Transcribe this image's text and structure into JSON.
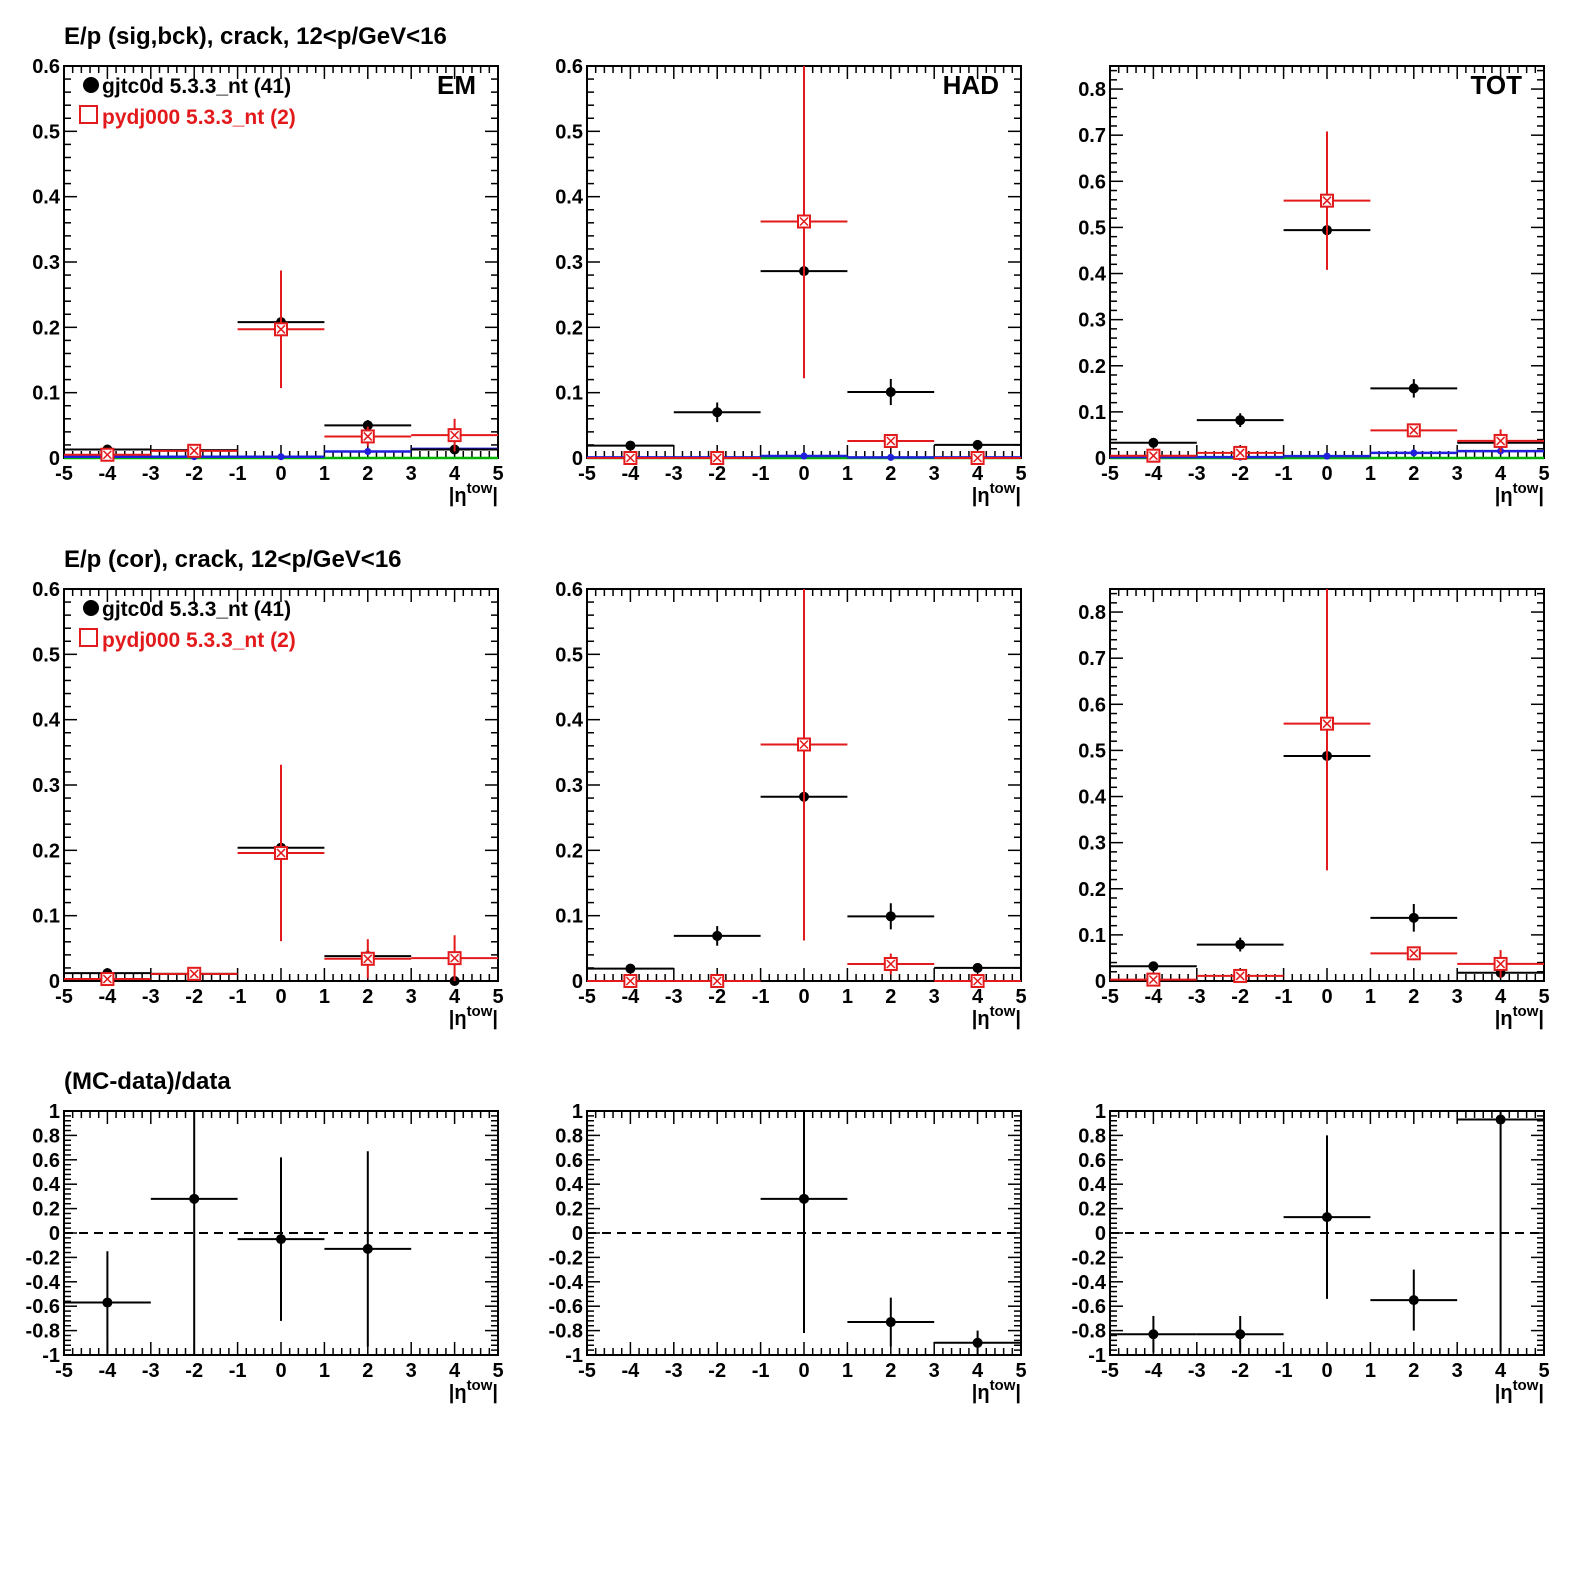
{
  "colors": {
    "data": "#000000",
    "mc": "#e31a1c",
    "blue": "#1f1fdc",
    "green": "#00b400"
  },
  "legend": {
    "data": "gjtc0d 5.3.3_nt (41)",
    "mc": "pydj000 5.3.3_nt (2)"
  },
  "chart_data": [
    {
      "type": "scatter",
      "row_title": "E/p (sig,bck), crack, 12<p/GeV<16",
      "corner_label": "EM",
      "xlabel": "|η^tow|",
      "xlim": [
        -5,
        5
      ],
      "ylim": [
        0,
        0.6
      ],
      "yticks": [
        0,
        0.1,
        0.2,
        0.3,
        0.4,
        0.5,
        0.6
      ],
      "yticklabels": [
        "0",
        "0.1",
        "0.2",
        "0.3",
        "0.4",
        "0.5",
        "0.6"
      ],
      "xticks": [
        -5,
        -4,
        -3,
        -2,
        -1,
        0,
        1,
        2,
        3,
        4,
        5
      ],
      "xticklabels": [
        "-5",
        "-4",
        "-3",
        "-2",
        "-1",
        "0",
        "1",
        "2",
        "3",
        "4",
        "5"
      ],
      "has_legend": true,
      "series": [
        {
          "name": "gjtc0d 5.3.3_nt (41)",
          "style": "data",
          "x": [
            -4,
            -2,
            0,
            2,
            4
          ],
          "xerr": 1,
          "y": [
            0.013,
            0.012,
            0.208,
            0.05,
            0.013
          ],
          "yerr": [
            0.003,
            0.005,
            0.01,
            0.008,
            0.003
          ]
        },
        {
          "name": "pydj000 5.3.3_nt (2)",
          "style": "mc",
          "x": [
            -4,
            -2,
            0,
            2,
            4
          ],
          "xerr": 1,
          "y": [
            0.005,
            0.011,
            0.197,
            0.033,
            0.035
          ],
          "yerr": [
            0.004,
            0.006,
            0.09,
            0.015,
            0.025
          ]
        },
        {
          "style": "blue",
          "x": [
            -4,
            -2,
            0,
            2,
            4
          ],
          "xerr": 1,
          "y": [
            0.002,
            0.002,
            0.002,
            0.01,
            0.014
          ],
          "yerr": [
            0,
            0,
            0,
            0,
            0
          ]
        },
        {
          "style": "green",
          "x": [
            -4,
            -2,
            0,
            2,
            4
          ],
          "xerr": 1,
          "y": [
            0,
            0,
            0,
            0,
            0
          ],
          "yerr": [
            0,
            0,
            0,
            0,
            0
          ]
        }
      ]
    },
    {
      "type": "scatter",
      "corner_label": "HAD",
      "xlabel": "|η^tow|",
      "xlim": [
        -5,
        5
      ],
      "ylim": [
        0,
        0.6
      ],
      "yticks": [
        0,
        0.1,
        0.2,
        0.3,
        0.4,
        0.5,
        0.6
      ],
      "yticklabels": [
        "0",
        "0.1",
        "0.2",
        "0.3",
        "0.4",
        "0.5",
        "0.6"
      ],
      "xticks": [
        -5,
        -4,
        -3,
        -2,
        -1,
        0,
        1,
        2,
        3,
        4,
        5
      ],
      "xticklabels": [
        "-5",
        "-4",
        "-3",
        "-2",
        "-1",
        "0",
        "1",
        "2",
        "3",
        "4",
        "5"
      ],
      "series": [
        {
          "style": "data",
          "x": [
            -4,
            -2,
            0,
            2,
            4
          ],
          "xerr": 1,
          "y": [
            0.019,
            0.07,
            0.286,
            0.101,
            0.02
          ],
          "yerr": [
            0.004,
            0.015,
            0.04,
            0.02,
            0.004
          ]
        },
        {
          "style": "mc",
          "x": [
            -4,
            -2,
            0,
            2,
            4
          ],
          "xerr": 1,
          "y": [
            0,
            0,
            0.362,
            0.026,
            0
          ],
          "yerr": [
            0,
            0,
            0.24,
            0.005,
            0.002
          ]
        },
        {
          "style": "blue",
          "x": [
            -4,
            -2,
            0,
            2,
            4
          ],
          "xerr": 1,
          "y": [
            0.001,
            0.001,
            0.003,
            0.001,
            0.001
          ],
          "yerr": [
            0,
            0,
            0,
            0,
            0
          ]
        },
        {
          "style": "green",
          "x": [
            -4,
            -2,
            0,
            2,
            4
          ],
          "xerr": 1,
          "y": [
            0,
            0,
            0,
            0,
            0
          ],
          "yerr": [
            0,
            0,
            0,
            0,
            0
          ]
        }
      ]
    },
    {
      "type": "scatter",
      "corner_label": "TOT",
      "xlabel": "|η^tow|",
      "xlim": [
        -5,
        5
      ],
      "ylim": [
        0,
        0.85
      ],
      "yticks": [
        0,
        0.1,
        0.2,
        0.3,
        0.4,
        0.5,
        0.6,
        0.7,
        0.8
      ],
      "yticklabels": [
        "0",
        "0.1",
        "0.2",
        "0.3",
        "0.4",
        "0.5",
        "0.6",
        "0.7",
        "0.8"
      ],
      "xticks": [
        -5,
        -4,
        -3,
        -2,
        -1,
        0,
        1,
        2,
        3,
        4,
        5
      ],
      "xticklabels": [
        "-5",
        "-4",
        "-3",
        "-2",
        "-1",
        "0",
        "1",
        "2",
        "3",
        "4",
        "5"
      ],
      "series": [
        {
          "style": "data",
          "x": [
            -4,
            -2,
            0,
            2,
            4
          ],
          "xerr": 1,
          "y": [
            0.033,
            0.082,
            0.494,
            0.151,
            0.033
          ],
          "yerr": [
            0.005,
            0.015,
            0.05,
            0.02,
            0.006
          ]
        },
        {
          "style": "mc",
          "x": [
            -4,
            -2,
            0,
            2,
            4
          ],
          "xerr": 1,
          "y": [
            0.005,
            0.011,
            0.558,
            0.06,
            0.037
          ],
          "yerr": [
            0.004,
            0.006,
            0.15,
            0.01,
            0.025
          ]
        },
        {
          "style": "blue",
          "x": [
            -4,
            -2,
            0,
            2,
            4
          ],
          "xerr": 1,
          "y": [
            0.002,
            0.002,
            0.004,
            0.011,
            0.015
          ],
          "yerr": [
            0,
            0,
            0,
            0,
            0
          ]
        },
        {
          "style": "green",
          "x": [
            -4,
            -2,
            0,
            2,
            4
          ],
          "xerr": 1,
          "y": [
            0,
            0,
            0,
            0,
            0
          ],
          "yerr": [
            0,
            0,
            0,
            0,
            0
          ]
        }
      ]
    },
    {
      "type": "scatter",
      "row_title": "E/p (cor), crack, 12<p/GeV<16",
      "xlabel": "|η^tow|",
      "xlim": [
        -5,
        5
      ],
      "ylim": [
        0,
        0.6
      ],
      "yticks": [
        0,
        0.1,
        0.2,
        0.3,
        0.4,
        0.5,
        0.6
      ],
      "yticklabels": [
        "0",
        "0.1",
        "0.2",
        "0.3",
        "0.4",
        "0.5",
        "0.6"
      ],
      "xticks": [
        -5,
        -4,
        -3,
        -2,
        -1,
        0,
        1,
        2,
        3,
        4,
        5
      ],
      "xticklabels": [
        "-5",
        "-4",
        "-3",
        "-2",
        "-1",
        "0",
        "1",
        "2",
        "3",
        "4",
        "5"
      ],
      "has_legend": true,
      "series": [
        {
          "name": "gjtc0d 5.3.3_nt (41)",
          "style": "data",
          "x": [
            -4,
            -2,
            0,
            2,
            4
          ],
          "xerr": 1,
          "y": [
            0.012,
            0.011,
            0.204,
            0.038,
            0.0
          ],
          "yerr": [
            0.003,
            0.005,
            0.04,
            0.01,
            0.0
          ]
        },
        {
          "name": "pydj000 5.3.3_nt (2)",
          "style": "mc",
          "x": [
            -4,
            -2,
            0,
            2,
            4
          ],
          "xerr": 1,
          "y": [
            0.003,
            0.011,
            0.196,
            0.034,
            0.035
          ],
          "yerr": [
            0.004,
            0.006,
            0.135,
            0.03,
            0.035
          ]
        }
      ]
    },
    {
      "type": "scatter",
      "xlabel": "|η^tow|",
      "xlim": [
        -5,
        5
      ],
      "ylim": [
        0,
        0.6
      ],
      "yticks": [
        0,
        0.1,
        0.2,
        0.3,
        0.4,
        0.5,
        0.6
      ],
      "yticklabels": [
        "0",
        "0.1",
        "0.2",
        "0.3",
        "0.4",
        "0.5",
        "0.6"
      ],
      "xticks": [
        -5,
        -4,
        -3,
        -2,
        -1,
        0,
        1,
        2,
        3,
        4,
        5
      ],
      "xticklabels": [
        "-5",
        "-4",
        "-3",
        "-2",
        "-1",
        "0",
        "1",
        "2",
        "3",
        "4",
        "5"
      ],
      "series": [
        {
          "style": "data",
          "x": [
            -4,
            -2,
            0,
            2,
            4
          ],
          "xerr": 1,
          "y": [
            0.019,
            0.069,
            0.282,
            0.099,
            0.02
          ],
          "yerr": [
            0.004,
            0.015,
            0.04,
            0.02,
            0.004
          ]
        },
        {
          "style": "mc",
          "x": [
            -4,
            -2,
            0,
            2,
            4
          ],
          "xerr": 1,
          "y": [
            0,
            0,
            0.362,
            0.026,
            0
          ],
          "yerr": [
            0,
            0,
            0.3,
            0.016,
            0.002
          ]
        }
      ]
    },
    {
      "type": "scatter",
      "xlabel": "|η^tow|",
      "xlim": [
        -5,
        5
      ],
      "ylim": [
        0,
        0.85
      ],
      "yticks": [
        0,
        0.1,
        0.2,
        0.3,
        0.4,
        0.5,
        0.6,
        0.7,
        0.8
      ],
      "yticklabels": [
        "0",
        "0.1",
        "0.2",
        "0.3",
        "0.4",
        "0.5",
        "0.6",
        "0.7",
        "0.8"
      ],
      "xticks": [
        -5,
        -4,
        -3,
        -2,
        -1,
        0,
        1,
        2,
        3,
        4,
        5
      ],
      "xticklabels": [
        "-5",
        "-4",
        "-3",
        "-2",
        "-1",
        "0",
        "1",
        "2",
        "3",
        "4",
        "5"
      ],
      "series": [
        {
          "style": "data",
          "x": [
            -4,
            -2,
            0,
            2,
            4
          ],
          "xerr": 1,
          "y": [
            0.032,
            0.079,
            0.488,
            0.137,
            0.018
          ],
          "yerr": [
            0.005,
            0.015,
            0.05,
            0.03,
            0.006
          ]
        },
        {
          "style": "mc",
          "x": [
            -4,
            -2,
            0,
            2,
            4
          ],
          "xerr": 1,
          "y": [
            0.003,
            0.011,
            0.558,
            0.06,
            0.037
          ],
          "yerr": [
            0.004,
            0.006,
            0.318,
            0.015,
            0.03
          ]
        }
      ]
    },
    {
      "type": "scatter",
      "row_title": "(MC-data)/data",
      "xlabel": "|η^tow|",
      "xlim": [
        -5,
        5
      ],
      "ylim": [
        -1,
        1
      ],
      "reference_line": 0,
      "yticks": [
        -1,
        -0.8,
        -0.6,
        -0.4,
        -0.2,
        0,
        0.2,
        0.4,
        0.6,
        0.8,
        1
      ],
      "yticklabels": [
        "-1",
        "-0.8",
        "-0.6",
        "-0.4",
        "-0.2",
        "0",
        "0.2",
        "0.4",
        "0.6",
        "0.8",
        "1"
      ],
      "xticks": [
        -5,
        -4,
        -3,
        -2,
        -1,
        0,
        1,
        2,
        3,
        4,
        5
      ],
      "xticklabels": [
        "-5",
        "-4",
        "-3",
        "-2",
        "-1",
        "0",
        "1",
        "2",
        "3",
        "4",
        "5"
      ],
      "series": [
        {
          "style": "data",
          "x": [
            -4,
            -2,
            0,
            2
          ],
          "xerr": 1,
          "y": [
            -0.57,
            0.28,
            -0.05,
            -0.13
          ],
          "yerr": [
            0.42,
            1.5,
            0.67,
            0.8
          ]
        }
      ]
    },
    {
      "type": "scatter",
      "xlabel": "|η^tow|",
      "xlim": [
        -5,
        5
      ],
      "ylim": [
        -1,
        1
      ],
      "reference_line": 0,
      "yticks": [
        -1,
        -0.8,
        -0.6,
        -0.4,
        -0.2,
        0,
        0.2,
        0.4,
        0.6,
        0.8,
        1
      ],
      "yticklabels": [
        "-1",
        "-0.8",
        "-0.6",
        "-0.4",
        "-0.2",
        "0",
        "0.2",
        "0.4",
        "0.6",
        "0.8",
        "1"
      ],
      "xticks": [
        -5,
        -4,
        -3,
        -2,
        -1,
        0,
        1,
        2,
        3,
        4,
        5
      ],
      "xticklabels": [
        "-5",
        "-4",
        "-3",
        "-2",
        "-1",
        "0",
        "1",
        "2",
        "3",
        "4",
        "5"
      ],
      "series": [
        {
          "style": "data",
          "x": [
            0,
            2,
            4
          ],
          "xerr": 1,
          "y": [
            0.28,
            -0.73,
            -0.9
          ],
          "yerr": [
            1.1,
            0.2,
            0.1
          ]
        }
      ]
    },
    {
      "type": "scatter",
      "xlabel": "|η^tow|",
      "xlim": [
        -5,
        5
      ],
      "ylim": [
        -1,
        1
      ],
      "reference_line": 0,
      "yticks": [
        -1,
        -0.8,
        -0.6,
        -0.4,
        -0.2,
        0,
        0.2,
        0.4,
        0.6,
        0.8,
        1
      ],
      "yticklabels": [
        "-1",
        "-0.8",
        "-0.6",
        "-0.4",
        "-0.2",
        "0",
        "0.2",
        "0.4",
        "0.6",
        "0.8",
        "1"
      ],
      "xticks": [
        -5,
        -4,
        -3,
        -2,
        -1,
        0,
        1,
        2,
        3,
        4,
        5
      ],
      "xticklabels": [
        "-5",
        "-4",
        "-3",
        "-2",
        "-1",
        "0",
        "1",
        "2",
        "3",
        "4",
        "5"
      ],
      "series": [
        {
          "style": "data",
          "x": [
            -4,
            -2,
            0,
            2,
            4
          ],
          "xerr": 1,
          "y": [
            -0.83,
            -0.83,
            0.13,
            -0.55,
            0.93
          ],
          "yerr": [
            0.15,
            0.15,
            0.67,
            0.25,
            1.9
          ]
        }
      ]
    }
  ]
}
